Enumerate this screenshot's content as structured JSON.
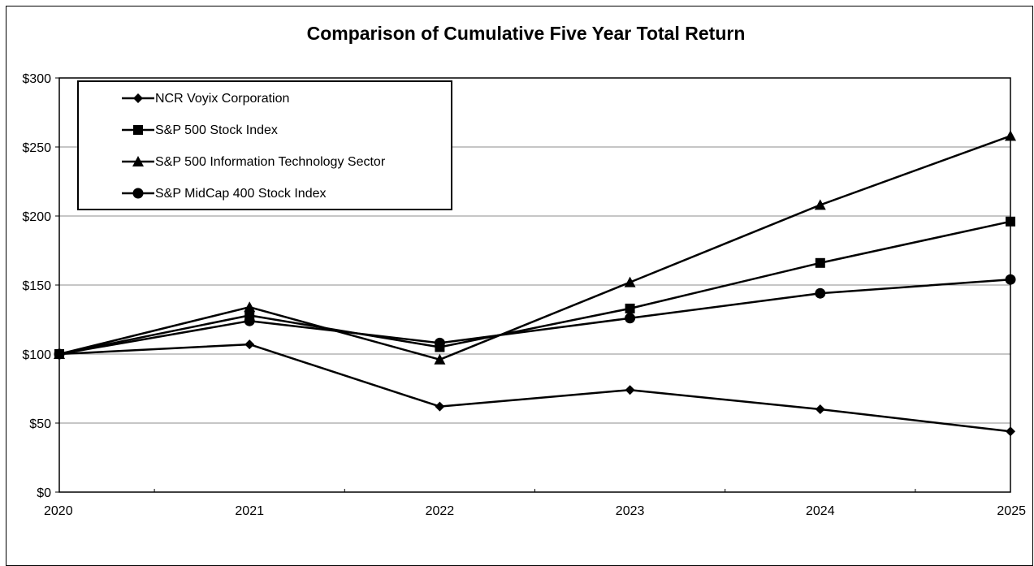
{
  "chart_data": {
    "type": "line",
    "title": "Comparison of Cumulative Five Year Total Return",
    "xlabel": "",
    "ylabel": "",
    "x": [
      "2020",
      "2021",
      "2022",
      "2023",
      "2024",
      "2025"
    ],
    "ylim": [
      0,
      300
    ],
    "yticks": [
      "$0",
      "$50",
      "$100",
      "$150",
      "$200",
      "$250",
      "$300"
    ],
    "grid": true,
    "legend_position": "top-left",
    "series": [
      {
        "name": "NCR Voyix Corporation",
        "marker": "diamond",
        "values": [
          100,
          107,
          62,
          74,
          60,
          44
        ]
      },
      {
        "name": "S&P 500 Stock Index",
        "marker": "square",
        "values": [
          100,
          128,
          105,
          133,
          166,
          196
        ]
      },
      {
        "name": "S&P 500 Information Technology Sector",
        "marker": "triangle",
        "values": [
          100,
          134,
          96,
          152,
          208,
          258
        ]
      },
      {
        "name": "S&P MidCap 400 Stock Index",
        "marker": "circle",
        "values": [
          100,
          124,
          108,
          126,
          144,
          154
        ]
      }
    ]
  }
}
